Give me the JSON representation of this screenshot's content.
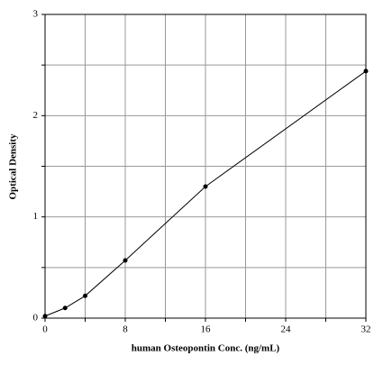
{
  "chart_data": {
    "type": "line",
    "x_label": "human Osteopontin Conc. (ng/mL)",
    "y_label": "Optical Density",
    "x": [
      0,
      2,
      4,
      8,
      16,
      32
    ],
    "series": [
      {
        "color": "#000000",
        "values": [
          0.02,
          0.1,
          0.22,
          0.57,
          1.3,
          2.44
        ]
      }
    ],
    "xlim": [
      0,
      32
    ],
    "xticks": [
      0,
      {
        "value": 4,
        "label": null
      },
      8,
      {
        "value": 12,
        "label": null
      },
      16,
      {
        "value": 20,
        "label": null
      },
      24,
      {
        "value": 28,
        "label": null
      },
      32
    ],
    "ylim": [
      0,
      3
    ],
    "yticks": [
      0,
      {
        "value": 0.5,
        "label": null
      },
      1,
      {
        "value": 1.5,
        "label": null
      },
      2,
      {
        "value": 2.5,
        "label": null
      },
      3
    ],
    "grid": true
  }
}
